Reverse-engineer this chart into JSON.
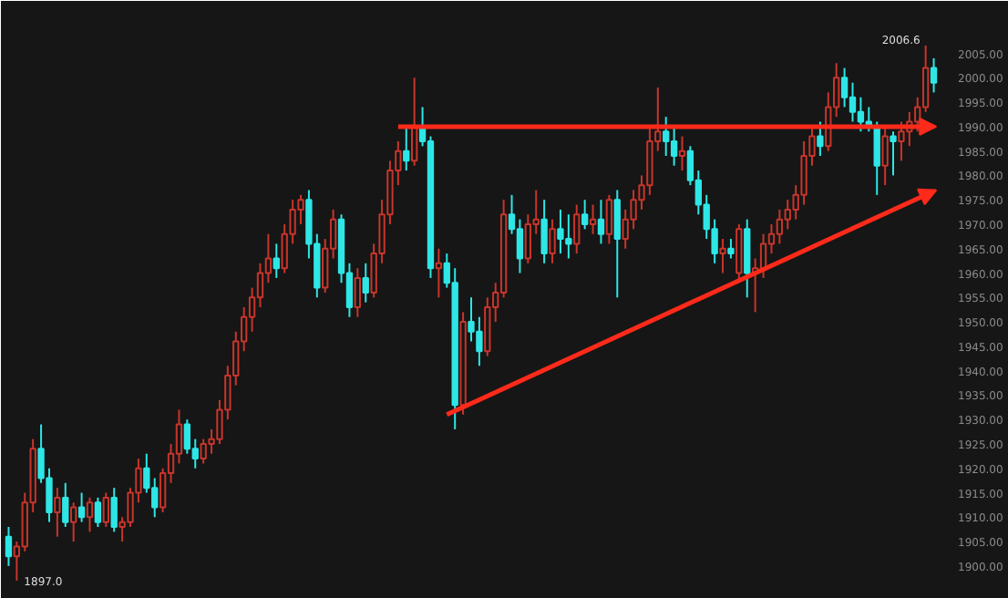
{
  "chart_data": {
    "type": "candlestick",
    "categories": [
      null,
      null,
      null,
      null,
      null,
      null,
      null,
      null,
      null,
      null,
      null,
      null,
      null,
      null,
      null,
      null,
      null,
      null,
      null,
      null,
      null,
      null,
      null,
      null,
      null,
      null,
      null,
      null,
      null,
      null,
      null,
      null,
      null,
      null,
      null,
      null,
      null,
      null,
      null,
      null,
      null,
      null,
      null,
      null,
      null,
      null,
      null,
      null,
      null,
      null,
      null,
      null,
      null,
      null,
      null,
      null,
      null,
      null,
      null,
      null,
      null,
      null,
      null,
      null,
      null,
      null,
      null,
      null,
      null,
      null,
      null,
      null,
      null,
      null,
      null,
      null,
      null,
      null,
      null,
      null,
      null,
      null,
      null,
      null,
      null,
      null,
      null,
      null,
      null,
      null,
      null,
      null,
      null,
      null,
      null,
      null,
      null,
      null,
      null,
      null,
      null,
      null,
      null,
      null,
      null,
      null,
      null,
      null,
      null,
      null,
      null,
      null,
      null,
      null,
      null
    ],
    "ohlc": [
      [
        1906,
        1908,
        1900,
        1902
      ],
      [
        1902,
        1905,
        1897,
        1904
      ],
      [
        1904,
        1915,
        1903,
        1913
      ],
      [
        1913,
        1926,
        1911,
        1924
      ],
      [
        1924,
        1929,
        1917,
        1918
      ],
      [
        1918,
        1920,
        1909,
        1911
      ],
      [
        1911,
        1916,
        1906,
        1914
      ],
      [
        1914,
        1917,
        1908,
        1909
      ],
      [
        1909,
        1913,
        1905,
        1912
      ],
      [
        1912,
        1915,
        1909,
        1910
      ],
      [
        1910,
        1914,
        1907,
        1913
      ],
      [
        1913,
        1914,
        1908,
        1909
      ],
      [
        1909,
        1915,
        1908,
        1914
      ],
      [
        1914,
        1916,
        1907,
        1908
      ],
      [
        1908,
        1910,
        1905,
        1909
      ],
      [
        1909,
        1916,
        1908,
        1915
      ],
      [
        1915,
        1922,
        1913,
        1920
      ],
      [
        1920,
        1923,
        1915,
        1916
      ],
      [
        1916,
        1918,
        1910,
        1912
      ],
      [
        1912,
        1920,
        1911,
        1919
      ],
      [
        1919,
        1925,
        1917,
        1923
      ],
      [
        1923,
        1932,
        1921,
        1929
      ],
      [
        1929,
        1930,
        1923,
        1924
      ],
      [
        1924,
        1926,
        1920,
        1922
      ],
      [
        1922,
        1926,
        1921,
        1925
      ],
      [
        1925,
        1928,
        1923,
        1926
      ],
      [
        1926,
        1934,
        1925,
        1932
      ],
      [
        1932,
        1941,
        1930,
        1939
      ],
      [
        1939,
        1948,
        1937,
        1946
      ],
      [
        1946,
        1953,
        1944,
        1951
      ],
      [
        1951,
        1957,
        1948,
        1955
      ],
      [
        1955,
        1962,
        1953,
        1960
      ],
      [
        1960,
        1968,
        1958,
        1963
      ],
      [
        1963,
        1966,
        1959,
        1961
      ],
      [
        1961,
        1970,
        1960,
        1968
      ],
      [
        1968,
        1975,
        1966,
        1973
      ],
      [
        1973,
        1976,
        1970,
        1975
      ],
      [
        1975,
        1977,
        1963,
        1966
      ],
      [
        1966,
        1968,
        1955,
        1957
      ],
      [
        1957,
        1967,
        1956,
        1965
      ],
      [
        1965,
        1973,
        1963,
        1971
      ],
      [
        1971,
        1972,
        1958,
        1960
      ],
      [
        1960,
        1962,
        1951,
        1953
      ],
      [
        1953,
        1961,
        1951,
        1959
      ],
      [
        1959,
        1962,
        1954,
        1956
      ],
      [
        1956,
        1966,
        1955,
        1964
      ],
      [
        1964,
        1975,
        1962,
        1972
      ],
      [
        1972,
        1983,
        1970,
        1981
      ],
      [
        1981,
        1987,
        1978,
        1985
      ],
      [
        1985,
        1990,
        1981,
        1983
      ],
      [
        1983,
        2000,
        1982,
        1990
      ],
      [
        1990,
        1994,
        1986,
        1987
      ],
      [
        1987,
        1988,
        1959,
        1961
      ],
      [
        1961,
        1965,
        1955,
        1962
      ],
      [
        1962,
        1964,
        1957,
        1958
      ],
      [
        1958,
        1961,
        1928,
        1933
      ],
      [
        1933,
        1952,
        1931,
        1950
      ],
      [
        1950,
        1955,
        1946,
        1948
      ],
      [
        1948,
        1951,
        1941,
        1944
      ],
      [
        1944,
        1955,
        1943,
        1953
      ],
      [
        1953,
        1958,
        1950,
        1956
      ],
      [
        1956,
        1975,
        1955,
        1972
      ],
      [
        1972,
        1976,
        1968,
        1969
      ],
      [
        1969,
        1971,
        1960,
        1963
      ],
      [
        1963,
        1972,
        1962,
        1970
      ],
      [
        1970,
        1977,
        1968,
        1971
      ],
      [
        1971,
        1975,
        1962,
        1964
      ],
      [
        1964,
        1971,
        1962,
        1969
      ],
      [
        1969,
        1973,
        1964,
        1967
      ],
      [
        1967,
        1972,
        1963,
        1966
      ],
      [
        1966,
        1974,
        1964,
        1972
      ],
      [
        1972,
        1975,
        1969,
        1970
      ],
      [
        1970,
        1974,
        1968,
        1971
      ],
      [
        1971,
        1975,
        1966,
        1968
      ],
      [
        1968,
        1976,
        1966,
        1975
      ],
      [
        1975,
        1977,
        1955,
        1967
      ],
      [
        1967,
        1973,
        1965,
        1971
      ],
      [
        1971,
        1977,
        1969,
        1975
      ],
      [
        1975,
        1980,
        1973,
        1978
      ],
      [
        1978,
        1990,
        1976,
        1987
      ],
      [
        1987,
        1998,
        1985,
        1989
      ],
      [
        1989,
        1992,
        1984,
        1987
      ],
      [
        1987,
        1990,
        1982,
        1984
      ],
      [
        1984,
        1988,
        1981,
        1985
      ],
      [
        1985,
        1986,
        1978,
        1979
      ],
      [
        1979,
        1981,
        1972,
        1974
      ],
      [
        1974,
        1976,
        1967,
        1969
      ],
      [
        1969,
        1971,
        1962,
        1964
      ],
      [
        1964,
        1967,
        1960,
        1965
      ],
      [
        1965,
        1967,
        1963,
        1964
      ],
      [
        1960,
        1970,
        1958,
        1969
      ],
      [
        1969,
        1971,
        1955,
        1960
      ],
      [
        1960,
        1963,
        1952,
        1961
      ],
      [
        1961,
        1968,
        1959,
        1966
      ],
      [
        1966,
        1970,
        1964,
        1968
      ],
      [
        1968,
        1973,
        1966,
        1971
      ],
      [
        1971,
        1975,
        1969,
        1973
      ],
      [
        1973,
        1978,
        1971,
        1976
      ],
      [
        1976,
        1987,
        1974,
        1984
      ],
      [
        1984,
        1990,
        1982,
        1988
      ],
      [
        1988,
        1991,
        1984,
        1986
      ],
      [
        1986,
        1997,
        1985,
        1994
      ],
      [
        1994,
        2003,
        1992,
        2000
      ],
      [
        2000,
        2002,
        1994,
        1996
      ],
      [
        1996,
        1999,
        1991,
        1993
      ],
      [
        1993,
        1996,
        1989,
        1991
      ],
      [
        1991,
        1994,
        1989,
        1990
      ],
      [
        1990,
        1991,
        1976,
        1982
      ],
      [
        1982,
        1990,
        1978,
        1988
      ],
      [
        1988,
        1989,
        1980,
        1987
      ],
      [
        1987,
        1991,
        1983,
        1989
      ],
      [
        1989,
        1993,
        1986,
        1991
      ],
      [
        1991,
        1996,
        1989,
        1994
      ],
      [
        1994,
        2006.6,
        1993,
        2002
      ],
      [
        2002,
        2004,
        1997,
        1999
      ]
    ],
    "ylim": [
      1894,
      2015
    ],
    "yticks": [
      {
        "value": 1900,
        "label": "1900.00"
      },
      {
        "value": 1905,
        "label": "1905.00"
      },
      {
        "value": 1910,
        "label": "1910.00"
      },
      {
        "value": 1915,
        "label": "1915.00"
      },
      {
        "value": 1920,
        "label": "1920.00"
      },
      {
        "value": 1925,
        "label": "1925.00"
      },
      {
        "value": 1930,
        "label": "1930.00"
      },
      {
        "value": 1935,
        "label": "1935.00"
      },
      {
        "value": 1940,
        "label": "1940.00"
      },
      {
        "value": 1945,
        "label": "1945.00"
      },
      {
        "value": 1950,
        "label": "1950.00"
      },
      {
        "value": 1955,
        "label": "1955.00"
      },
      {
        "value": 1960,
        "label": "1960.00"
      },
      {
        "value": 1965,
        "label": "1965.00"
      },
      {
        "value": 1970,
        "label": "1970.00"
      },
      {
        "value": 1975,
        "label": "1975.00"
      },
      {
        "value": 1980,
        "label": "1980.00"
      },
      {
        "value": 1985,
        "label": "1985.00"
      },
      {
        "value": 1990,
        "label": "1990.00"
      },
      {
        "value": 1995,
        "label": "1995.00"
      },
      {
        "value": 2000,
        "label": "2000.00"
      },
      {
        "value": 2005,
        "label": "2005.00"
      }
    ],
    "annotations": [
      "2006.6",
      "1897.0"
    ],
    "grid": false
  }
}
